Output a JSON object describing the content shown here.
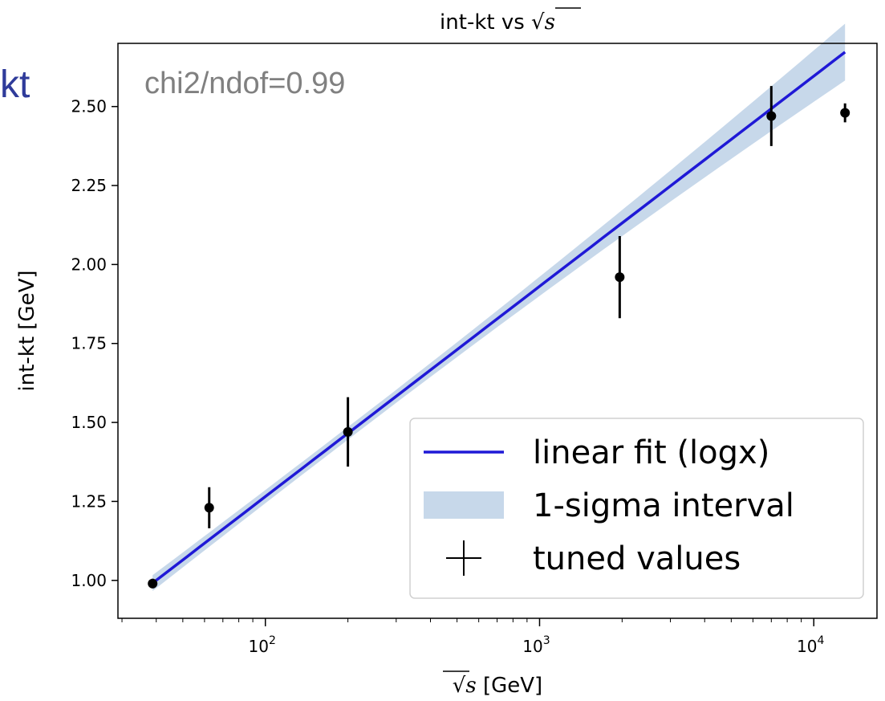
{
  "page_fragment_text": "kt",
  "chart_data": {
    "type": "scatter",
    "title": "int-kt vs √s",
    "title_parts": {
      "prefix": "int-kt vs ",
      "radicand": "s"
    },
    "xlabel": "√s [GeV]",
    "xlabel_parts": {
      "radicand": "s",
      "suffix": " [GeV]"
    },
    "ylabel": "int-kt [GeV]",
    "x_scale": "log",
    "xlim": [
      29,
      17000
    ],
    "ylim": [
      0.88,
      2.7
    ],
    "yticks": [
      1.0,
      1.25,
      1.5,
      1.75,
      2.0,
      2.25,
      2.5
    ],
    "ytick_labels": [
      "1.00",
      "1.25",
      "1.50",
      "1.75",
      "2.00",
      "2.25",
      "2.50"
    ],
    "xticks_major": [
      {
        "value": 100,
        "base": "10",
        "exp": "2"
      },
      {
        "value": 1000,
        "base": "10",
        "exp": "3"
      },
      {
        "value": 10000,
        "base": "10",
        "exp": "4"
      }
    ],
    "grid": false,
    "annotation": "chi2/ndof=0.99",
    "points": [
      {
        "x": 38.8,
        "y": 0.99,
        "err": 0.015
      },
      {
        "x": 62.4,
        "y": 1.23,
        "err": 0.065
      },
      {
        "x": 200,
        "y": 1.47,
        "err": 0.11
      },
      {
        "x": 1960,
        "y": 1.96,
        "err": 0.13
      },
      {
        "x": 7000,
        "y": 2.47,
        "err": 0.095
      },
      {
        "x": 13000,
        "y": 2.48,
        "err": 0.03
      }
    ],
    "fit": {
      "model": "y = a + b·log10(x)",
      "a": -0.066,
      "b": 0.6656,
      "x_range": [
        38.8,
        13000
      ],
      "band_halfwidth_at_ends": [
        0.025,
        0.09
      ],
      "band_halfwidth_min": 0.02,
      "band_min_at_x": 200
    },
    "colors": {
      "fit_line": "#1f19d6",
      "band": "#c7d8ea",
      "points": "#000000",
      "annotation": "#808080",
      "axis": "#000000"
    },
    "legend": {
      "position": "lower-right",
      "entries": [
        {
          "label": "linear fit (logx)",
          "kind": "line"
        },
        {
          "label": "1-sigma interval",
          "kind": "band"
        },
        {
          "label": "tuned values",
          "kind": "errorbar"
        }
      ]
    }
  }
}
